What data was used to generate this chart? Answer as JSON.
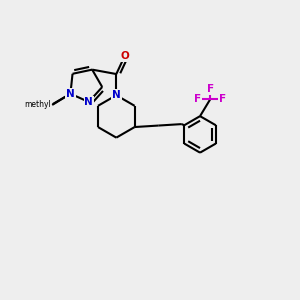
{
  "background_color": "#eeeeee",
  "bond_color": "#000000",
  "n_color": "#0000cc",
  "o_color": "#cc0000",
  "f_color": "#cc00cc",
  "line_width": 1.5,
  "figsize": [
    3.0,
    3.0
  ],
  "dpi": 100,
  "xlim": [
    0.0,
    10.0
  ],
  "ylim": [
    0.0,
    10.0
  ]
}
